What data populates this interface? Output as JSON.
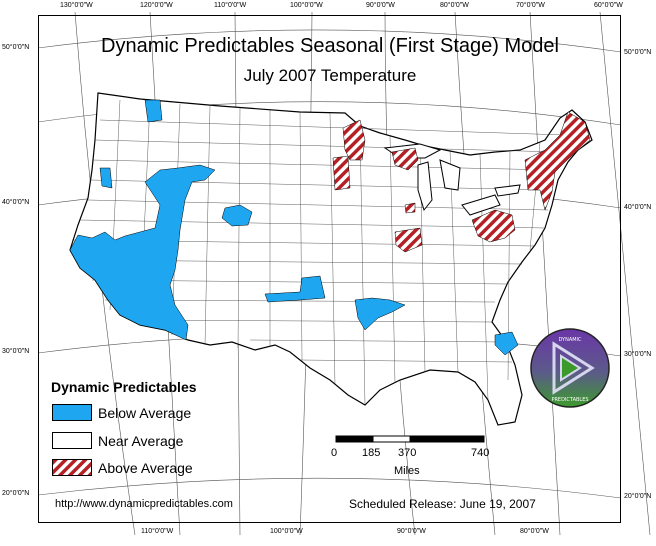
{
  "map": {
    "title": "Dynamic Predictables Seasonal (First Stage) Model",
    "subtitle": "July 2007 Temperature",
    "graticule": {
      "top_labels": [
        "130°0'0\"W",
        "120°0'0\"W",
        "110°0'0\"W",
        "100°0'0\"W",
        "90°0'0\"W",
        "80°0'0\"W",
        "70°0'0\"W",
        "60°0'0\"W"
      ],
      "bottom_labels": [
        "110°0'0\"W",
        "100°0'0\"W",
        "90°0'0\"W",
        "80°0'0\"W"
      ],
      "left_labels": [
        "50°0'0\"N",
        "40°0'0\"N",
        "30°0'0\"N",
        "20°0'0\"N"
      ],
      "right_labels": [
        "50°0'0\"N",
        "40°0'0\"N",
        "30°0'0\"N",
        "20°0'0\"N"
      ]
    },
    "colors": {
      "below_average": "#1ea7f0",
      "near_average": "#ffffff",
      "above_average_stripe": "#b52025",
      "logo_green": "#3c9a2c",
      "logo_purple": "#6a36a8"
    },
    "legend": {
      "title": "Dynamic Predictables",
      "items": [
        {
          "label": "Below Average",
          "fill": "#1ea7f0"
        },
        {
          "label": "Near Average",
          "fill": "#ffffff"
        },
        {
          "label": "Above Average",
          "fill": "hatched"
        }
      ]
    },
    "scale_bar": {
      "ticks": [
        "0",
        "185",
        "370",
        "740"
      ],
      "unit": "Miles"
    },
    "footer": {
      "url": "http://www.dynamicpredictables.com",
      "release": "Scheduled Release: June 19, 2007"
    },
    "logo": {
      "text_top": "DYNAMIC",
      "text_bottom": "PREDICTABLES",
      "icon": "play-triangle-logo-icon"
    }
  }
}
